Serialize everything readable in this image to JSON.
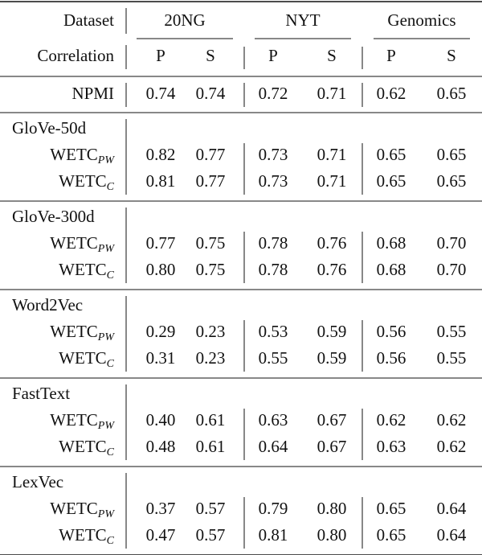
{
  "header": {
    "dataset": "Dataset",
    "correlation": "Correlation",
    "datasets": [
      "20NG",
      "NYT",
      "Genomics"
    ],
    "metrics": [
      "P",
      "S",
      "P",
      "S",
      "P",
      "S"
    ]
  },
  "baseline": {
    "label": "NPMI",
    "values": [
      "0.74",
      "0.74",
      "0.72",
      "0.71",
      "0.62",
      "0.65"
    ]
  },
  "groups": [
    {
      "name": "GloVe-50d",
      "rows": [
        {
          "method": "WETC",
          "sub": "PW",
          "values": [
            "0.82",
            "0.77",
            "0.73",
            "0.71",
            "0.65",
            "0.65"
          ]
        },
        {
          "method": "WETC",
          "sub": "C",
          "values": [
            "0.81",
            "0.77",
            "0.73",
            "0.71",
            "0.65",
            "0.65"
          ]
        }
      ]
    },
    {
      "name": "GloVe-300d",
      "rows": [
        {
          "method": "WETC",
          "sub": "PW",
          "values": [
            "0.77",
            "0.75",
            "0.78",
            "0.76",
            "0.68",
            "0.70"
          ]
        },
        {
          "method": "WETC",
          "sub": "C",
          "values": [
            "0.80",
            "0.75",
            "0.78",
            "0.76",
            "0.68",
            "0.70"
          ]
        }
      ]
    },
    {
      "name": "Word2Vec",
      "rows": [
        {
          "method": "WETC",
          "sub": "PW",
          "values": [
            "0.29",
            "0.23",
            "0.53",
            "0.59",
            "0.56",
            "0.55"
          ]
        },
        {
          "method": "WETC",
          "sub": "C",
          "values": [
            "0.31",
            "0.23",
            "0.55",
            "0.59",
            "0.56",
            "0.55"
          ]
        }
      ]
    },
    {
      "name": "FastText",
      "rows": [
        {
          "method": "WETC",
          "sub": "PW",
          "values": [
            "0.40",
            "0.61",
            "0.63",
            "0.67",
            "0.62",
            "0.62"
          ]
        },
        {
          "method": "WETC",
          "sub": "C",
          "values": [
            "0.48",
            "0.61",
            "0.64",
            "0.67",
            "0.63",
            "0.62"
          ]
        }
      ]
    },
    {
      "name": "LexVec",
      "rows": [
        {
          "method": "WETC",
          "sub": "PW",
          "values": [
            "0.37",
            "0.57",
            "0.79",
            "0.80",
            "0.65",
            "0.64"
          ]
        },
        {
          "method": "WETC",
          "sub": "C",
          "values": [
            "0.47",
            "0.57",
            "0.81",
            "0.80",
            "0.65",
            "0.64"
          ]
        }
      ]
    }
  ]
}
